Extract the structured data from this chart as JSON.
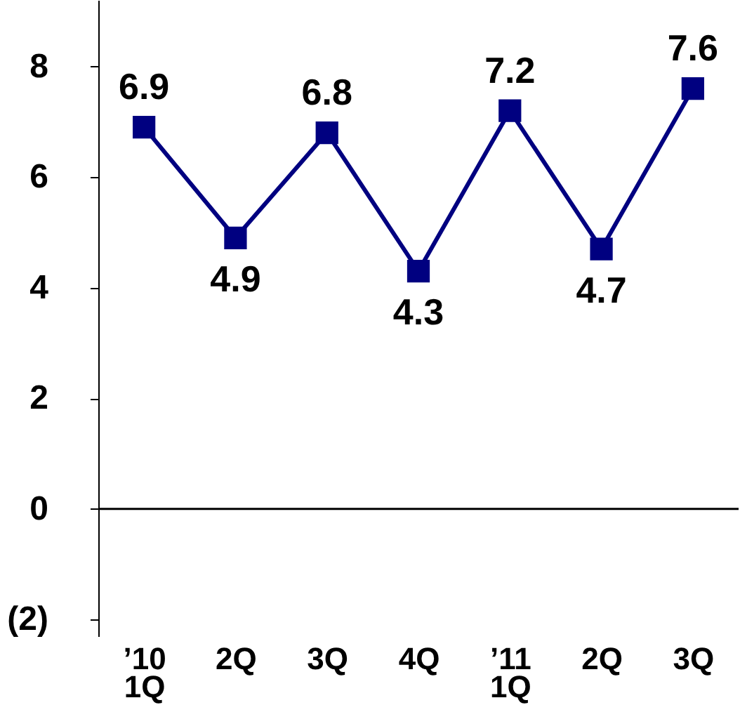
{
  "chart_data": {
    "type": "line",
    "categories": [
      "’10\n1Q",
      "2Q",
      "3Q",
      "4Q",
      "’11\n1Q",
      "2Q",
      "3Q"
    ],
    "series": [
      {
        "color": "#000080",
        "values": [
          6.9,
          4.9,
          6.8,
          4.3,
          7.2,
          4.7,
          7.6
        ]
      }
    ],
    "ylim": [
      -2.3,
      9.2
    ],
    "yticks": [
      {
        "value": -2,
        "label": "(2)"
      },
      0,
      2,
      4,
      6,
      8
    ],
    "ref_lines": [
      {
        "axis": "y",
        "value": 0,
        "color": "#000000"
      }
    ],
    "marker": "square",
    "line_style": "solid",
    "grid": false,
    "legend": false,
    "data_labels": true
  }
}
